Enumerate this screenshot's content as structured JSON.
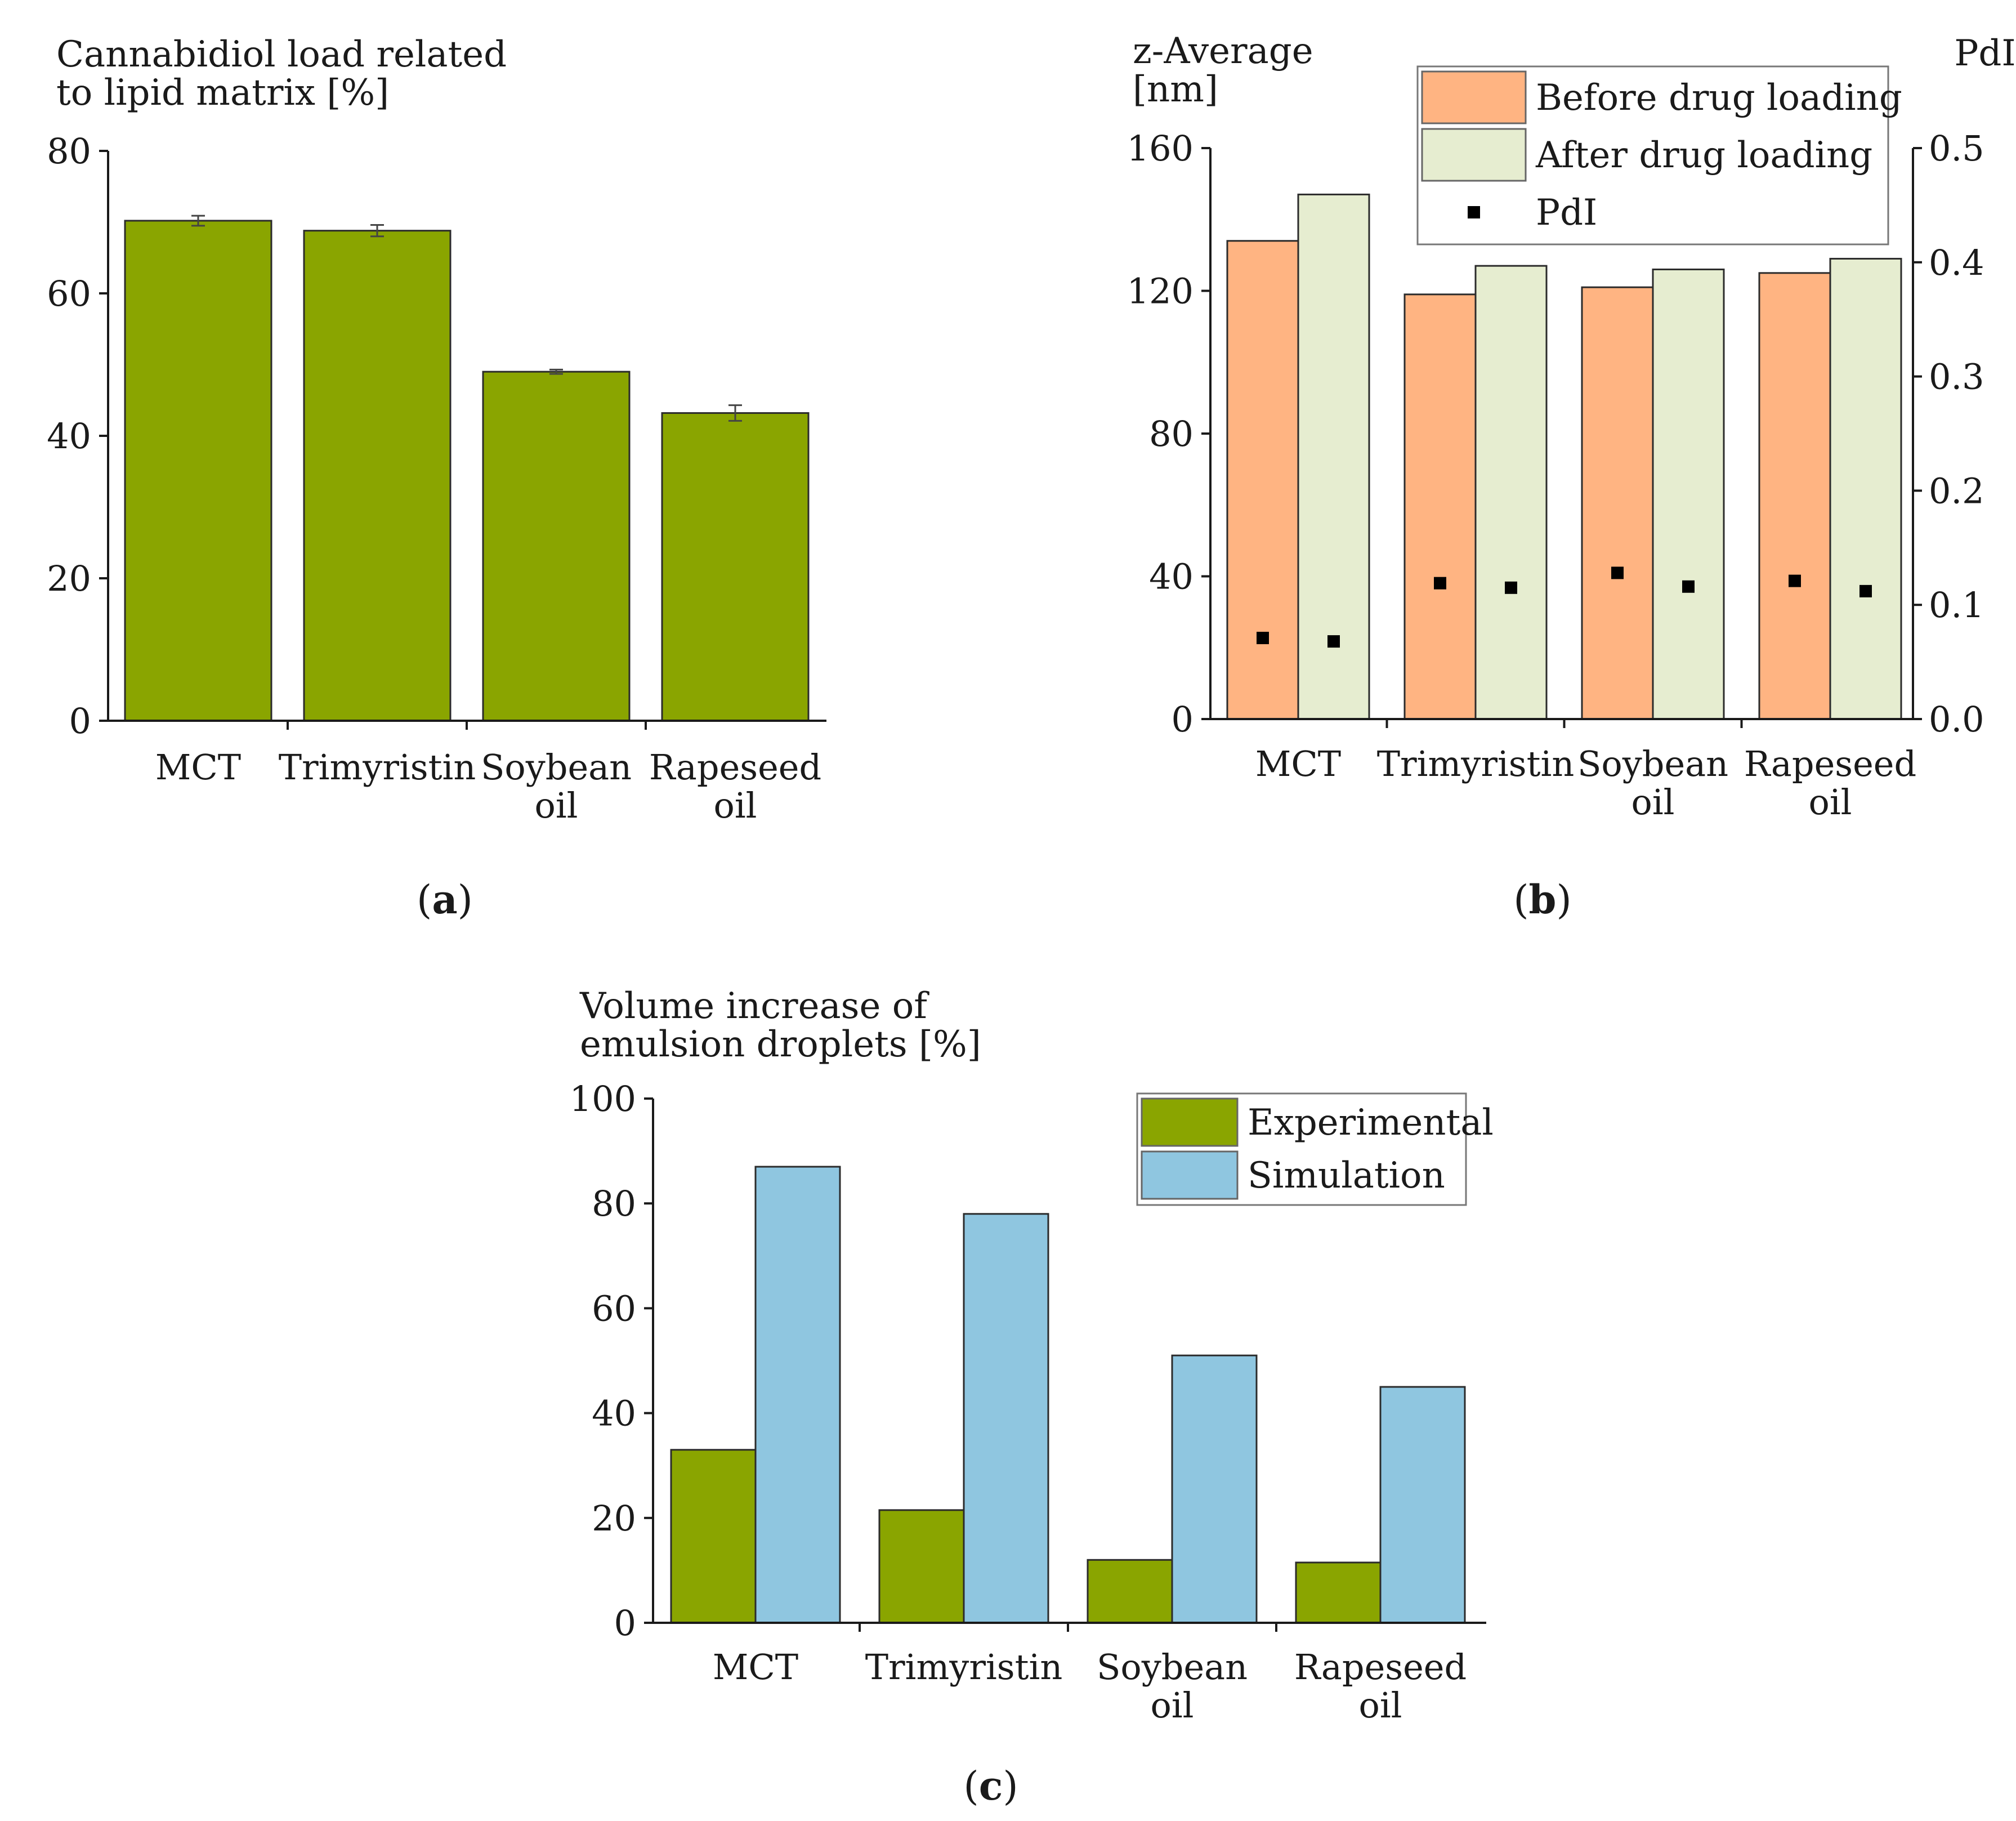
{
  "chart_data": [
    {
      "panel_tag": "a",
      "type": "bar",
      "y_title_lines": [
        "Cannabidiol load related",
        "to lipid matrix [%]"
      ],
      "categories": [
        [
          "MCT"
        ],
        [
          "Trimyristin"
        ],
        [
          "Soybean",
          "oil"
        ],
        [
          "Rapeseed",
          "oil"
        ]
      ],
      "series": [
        {
          "values": [
            70.2,
            68.8,
            49.0,
            43.2
          ],
          "errors": [
            0.7,
            0.8,
            0.3,
            1.1
          ],
          "color": "#8aa500"
        }
      ],
      "ylim": [
        0,
        80
      ],
      "yticks": [
        0,
        20,
        40,
        60,
        80
      ]
    },
    {
      "panel_tag": "b",
      "type": "bar",
      "y_title_lines": [
        "z-Average",
        "[nm]"
      ],
      "y2_title": "PdI",
      "categories": [
        [
          "MCT"
        ],
        [
          "Trimyristin"
        ],
        [
          "Soybean",
          "oil"
        ],
        [
          "Rapeseed",
          "oil"
        ]
      ],
      "series": [
        {
          "name": "Before drug loading",
          "values": [
            134,
            119,
            121,
            125
          ],
          "color": "#ffb482"
        },
        {
          "name": "After drug loading",
          "values": [
            147,
            127,
            126,
            129
          ],
          "color": "#e6edd0"
        }
      ],
      "pdi_series": {
        "name": "PdI",
        "before": [
          0.071,
          0.119,
          0.128,
          0.121
        ],
        "after": [
          0.068,
          0.115,
          0.116,
          0.112
        ]
      },
      "ylim": [
        0,
        160
      ],
      "yticks": [
        0,
        40,
        80,
        120,
        160
      ],
      "y2lim": [
        0,
        0.5
      ],
      "y2ticks": [
        "0.0",
        "0.1",
        "0.2",
        "0.3",
        "0.4",
        "0.5"
      ],
      "legend_position": "top-right"
    },
    {
      "panel_tag": "c",
      "type": "bar",
      "y_title_lines": [
        "Volume increase of",
        "emulsion droplets [%]"
      ],
      "categories": [
        [
          "MCT"
        ],
        [
          "Trimyristin"
        ],
        [
          "Soybean",
          "oil"
        ],
        [
          "Rapeseed",
          "oil"
        ]
      ],
      "series": [
        {
          "name": "Experimental",
          "values": [
            33,
            21.5,
            12,
            11.5
          ],
          "color": "#8aa500"
        },
        {
          "name": "Simulation",
          "values": [
            87,
            78,
            51,
            45
          ],
          "color": "#8fc6e0"
        }
      ],
      "ylim": [
        0,
        100
      ],
      "yticks": [
        0,
        20,
        40,
        60,
        80,
        100
      ],
      "legend_position": "top-right"
    }
  ]
}
